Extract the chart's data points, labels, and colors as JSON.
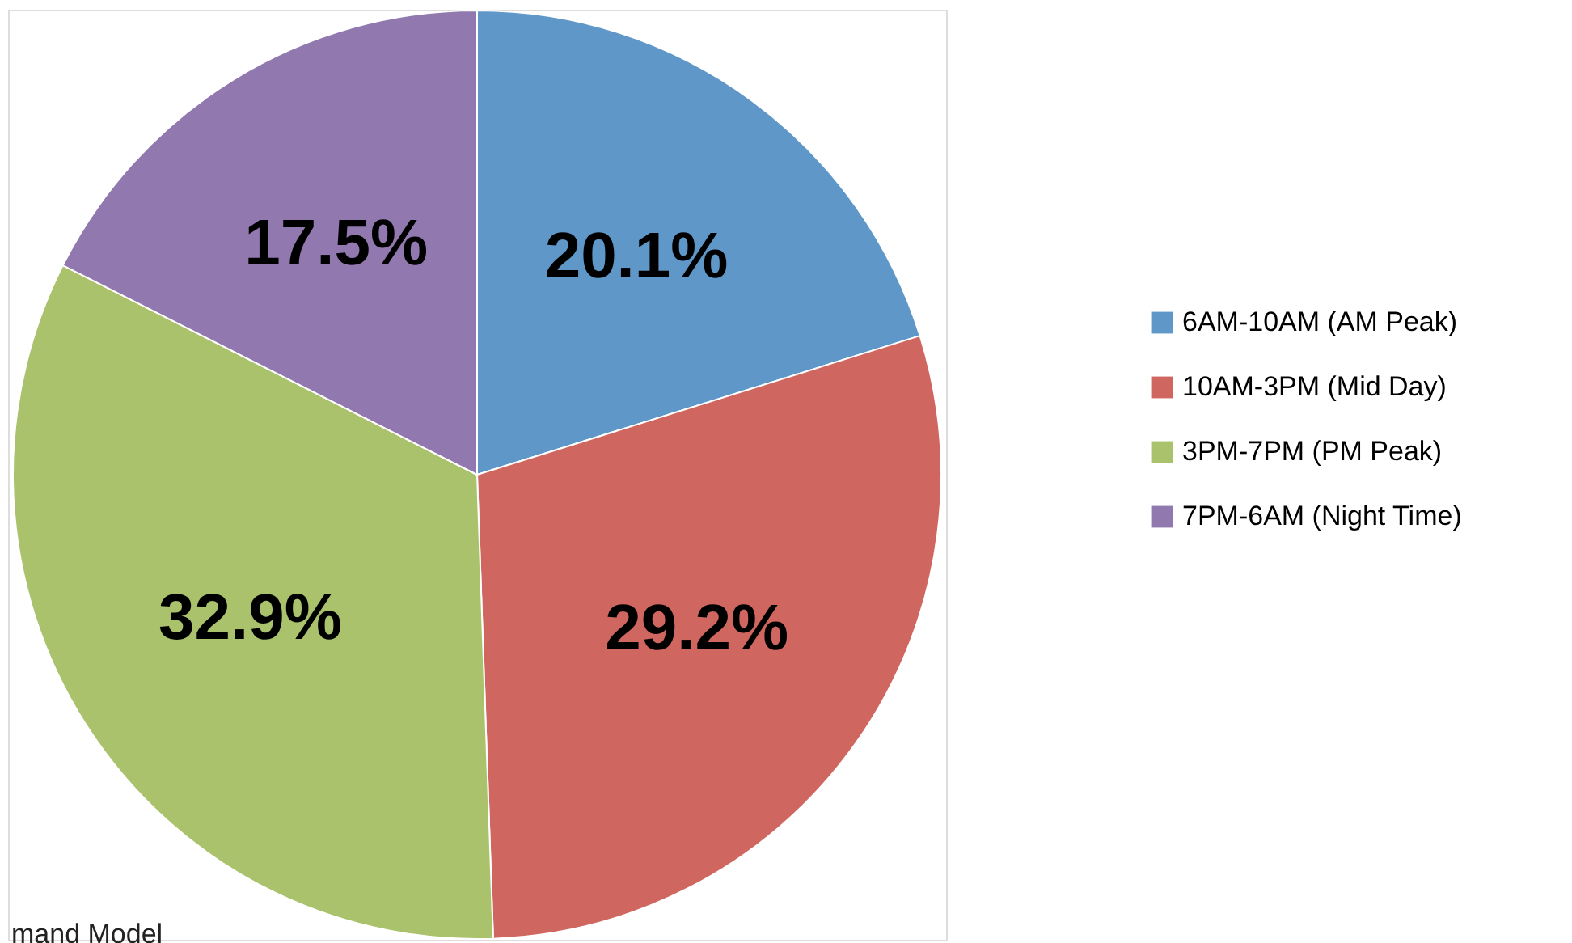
{
  "chart_data": {
    "type": "pie",
    "categories": [
      "6AM-10AM (AM Peak)",
      "10AM-3PM (Mid Day)",
      "3PM-7PM (PM Peak)",
      "7PM-6AM (Night Time)"
    ],
    "values": [
      20.1,
      29.2,
      32.9,
      17.5
    ],
    "colors": [
      "#5f97c9",
      "#cf665f",
      "#a9c26b",
      "#9179b0"
    ],
    "value_labels": [
      "20.1%",
      "29.2%",
      "32.9%",
      "17.5%"
    ],
    "legend": "right",
    "annotations": [
      "mand Model"
    ]
  }
}
